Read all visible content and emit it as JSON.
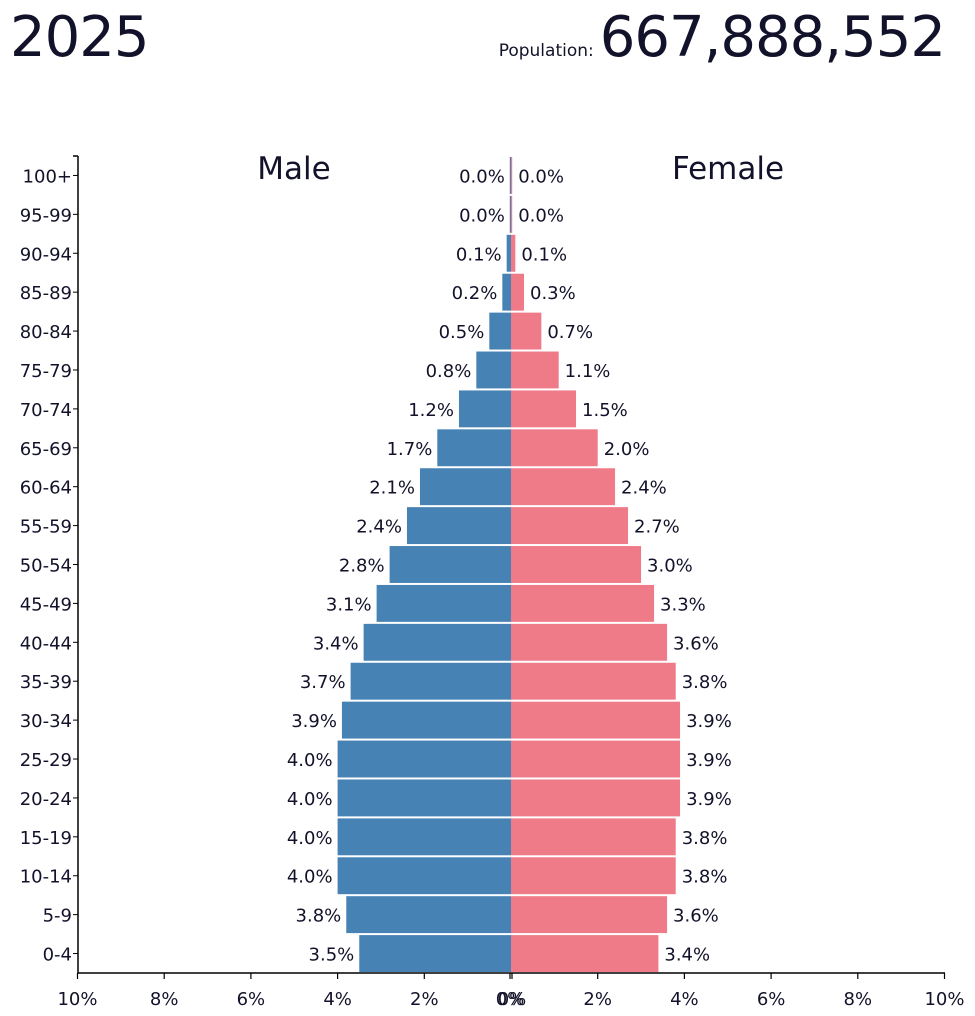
{
  "header": {
    "year": "2025",
    "population_label": "Population:",
    "population_value": "667,888,552"
  },
  "colors": {
    "male": "#4682b4",
    "female": "#ef7a88",
    "text": "#12122a",
    "axis": "#000000"
  },
  "chart_data": {
    "type": "bar",
    "orientation": "horizontal-population-pyramid",
    "series_labels": {
      "male": "Male",
      "female": "Female"
    },
    "categories": [
      "0-4",
      "5-9",
      "10-14",
      "15-19",
      "20-24",
      "25-29",
      "30-34",
      "35-39",
      "40-44",
      "45-49",
      "50-54",
      "55-59",
      "60-64",
      "65-69",
      "70-74",
      "75-79",
      "80-84",
      "85-89",
      "90-94",
      "95-99",
      "100+"
    ],
    "series": [
      {
        "name": "Male",
        "values": [
          3.5,
          3.8,
          4.0,
          4.0,
          4.0,
          4.0,
          3.9,
          3.7,
          3.4,
          3.1,
          2.8,
          2.4,
          2.1,
          1.7,
          1.2,
          0.8,
          0.5,
          0.2,
          0.1,
          0.0,
          0.0
        ]
      },
      {
        "name": "Female",
        "values": [
          3.4,
          3.6,
          3.8,
          3.8,
          3.9,
          3.9,
          3.9,
          3.8,
          3.6,
          3.3,
          3.0,
          2.7,
          2.4,
          2.0,
          1.5,
          1.1,
          0.7,
          0.3,
          0.1,
          0.0,
          0.0
        ]
      }
    ],
    "data_labels": {
      "male": [
        "3.5%",
        "3.8%",
        "4.0%",
        "4.0%",
        "4.0%",
        "4.0%",
        "3.9%",
        "3.7%",
        "3.4%",
        "3.1%",
        "2.8%",
        "2.4%",
        "2.1%",
        "1.7%",
        "1.2%",
        "0.8%",
        "0.5%",
        "0.2%",
        "0.1%",
        "0.0%",
        "0.0%"
      ],
      "female": [
        "3.4%",
        "3.6%",
        "3.8%",
        "3.8%",
        "3.9%",
        "3.9%",
        "3.9%",
        "3.8%",
        "3.6%",
        "3.3%",
        "3.0%",
        "2.7%",
        "2.4%",
        "2.0%",
        "1.5%",
        "1.1%",
        "0.7%",
        "0.3%",
        "0.1%",
        "0.0%",
        "0.0%"
      ]
    },
    "x_ticks": [
      "10%",
      "8%",
      "6%",
      "4%",
      "2%",
      "0%",
      "0%",
      "2%",
      "4%",
      "6%",
      "8%",
      "10%"
    ],
    "xlim": [
      -10,
      10
    ],
    "grid": false
  }
}
